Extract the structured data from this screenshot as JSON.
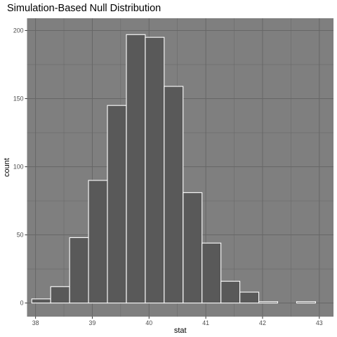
{
  "chart_data": {
    "type": "bar",
    "title": "Simulation-Based Null Distribution",
    "xlabel": "stat",
    "ylabel": "count",
    "xlim": [
      37.85,
      43.25
    ],
    "ylim": [
      -10,
      209
    ],
    "x_ticks": [
      38,
      39,
      40,
      41,
      42,
      43
    ],
    "y_ticks": [
      0,
      50,
      100,
      150,
      200
    ],
    "bin_width": 0.333,
    "bins": [
      {
        "center": 38.1,
        "count": 3
      },
      {
        "center": 38.433,
        "count": 12
      },
      {
        "center": 38.767,
        "count": 48
      },
      {
        "center": 39.1,
        "count": 90
      },
      {
        "center": 39.433,
        "count": 145
      },
      {
        "center": 39.767,
        "count": 197
      },
      {
        "center": 40.1,
        "count": 195
      },
      {
        "center": 40.433,
        "count": 159
      },
      {
        "center": 40.767,
        "count": 81
      },
      {
        "center": 41.1,
        "count": 44
      },
      {
        "center": 41.433,
        "count": 16
      },
      {
        "center": 41.767,
        "count": 8
      },
      {
        "center": 42.1,
        "count": 1
      },
      {
        "center": 42.433,
        "count": 0
      },
      {
        "center": 42.767,
        "count": 1
      }
    ],
    "grid": true,
    "colors": {
      "panel_background": "#7f7f7f",
      "gridline": "#666666",
      "bar_fill": "#595959",
      "bar_outline": "#ffffff"
    }
  }
}
